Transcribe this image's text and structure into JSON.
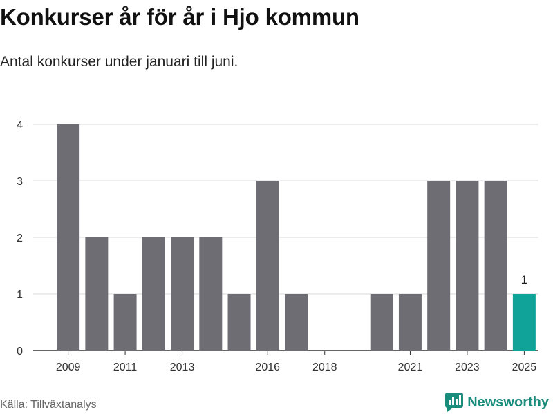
{
  "title": "Konkurser år för år i Hjo kommun",
  "subtitle": "Antal konkurser under januari till juni.",
  "source": "Källa: Tillväxtanalys",
  "brand": "Newsworthy",
  "colors": {
    "bar": "#6e6d73",
    "highlight": "#0fa399",
    "grid": "#d9d9d9",
    "axis": "#333333",
    "brand": "#1a8c7c"
  },
  "chart_data": {
    "type": "bar",
    "title": "Konkurser år för år i Hjo kommun",
    "subtitle": "Antal konkurser under januari till juni.",
    "categories": [
      "2009",
      "2010",
      "2011",
      "2012",
      "2013",
      "2014",
      "2015",
      "2016",
      "2017",
      "2018",
      "2019",
      "2020",
      "2021",
      "2022",
      "2023",
      "2024",
      "2025"
    ],
    "values": [
      4,
      2,
      1,
      2,
      2,
      2,
      1,
      3,
      1,
      0,
      0,
      1,
      1,
      3,
      3,
      3,
      1
    ],
    "x_tick_labels": [
      "2009",
      "2011",
      "2013",
      "2016",
      "2018",
      "2021",
      "2023",
      "2025"
    ],
    "y_ticks": [
      0,
      1,
      2,
      3,
      4
    ],
    "ylim": [
      0,
      4.3
    ],
    "grid": true,
    "highlight": {
      "category": "2025",
      "label": "1"
    }
  }
}
